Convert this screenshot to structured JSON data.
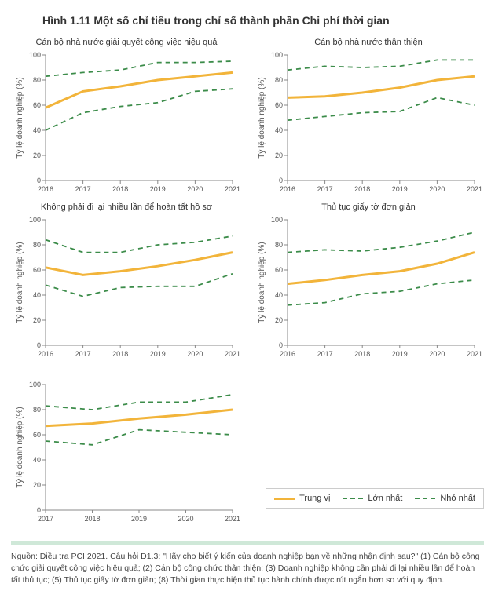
{
  "title": "Hình 1.11 Một số chỉ tiêu trong chỉ số thành phần Chi phí thời gian",
  "colors": {
    "median": "#f2b43a",
    "max": "#3c8c4a",
    "min": "#3c8c4a",
    "axis": "#888888",
    "bg": "#ffffff",
    "sep": "#cfe8d8"
  },
  "y_axis": {
    "label": "Tỷ lệ doanh nghiệp (%)",
    "min": 0,
    "max": 100,
    "ticks": [
      0,
      20,
      40,
      60,
      80,
      100
    ]
  },
  "legend": {
    "median": "Trung vị",
    "max": "Lớn nhất",
    "min": "Nhỏ nhất"
  },
  "panels": [
    {
      "title": "Cán bộ nhà nước giải quyết công việc hiệu quả",
      "years": [
        2016,
        2017,
        2018,
        2019,
        2020,
        2021
      ],
      "median": [
        58,
        71,
        75,
        80,
        83,
        86
      ],
      "max": [
        83,
        86,
        88,
        94,
        94,
        95
      ],
      "min": [
        40,
        54,
        59,
        62,
        71,
        73
      ]
    },
    {
      "title": "Cán bộ nhà nước thân thiện",
      "years": [
        2016,
        2017,
        2018,
        2019,
        2020,
        2021
      ],
      "median": [
        66,
        67,
        70,
        74,
        80,
        83
      ],
      "max": [
        88,
        91,
        90,
        91,
        96,
        96
      ],
      "min": [
        48,
        51,
        54,
        55,
        66,
        60
      ]
    },
    {
      "title": "Không phải đi lại nhiều lần để hoàn tất hồ sơ",
      "years": [
        2016,
        2017,
        2018,
        2019,
        2020,
        2021
      ],
      "median": [
        62,
        56,
        59,
        63,
        68,
        74
      ],
      "max": [
        84,
        74,
        74,
        80,
        82,
        87
      ],
      "min": [
        48,
        39,
        46,
        47,
        47,
        57
      ]
    },
    {
      "title": "Thủ tục giấy tờ đơn giản",
      "years": [
        2016,
        2017,
        2018,
        2019,
        2020,
        2021
      ],
      "median": [
        49,
        52,
        56,
        59,
        65,
        74
      ],
      "max": [
        74,
        76,
        75,
        78,
        83,
        90
      ],
      "min": [
        32,
        34,
        41,
        43,
        49,
        52
      ]
    },
    {
      "title": "",
      "years": [
        2017,
        2018,
        2019,
        2020,
        2021
      ],
      "median": [
        67,
        69,
        73,
        76,
        80
      ],
      "max": [
        83,
        80,
        86,
        86,
        92
      ],
      "min": [
        55,
        52,
        64,
        62,
        60
      ]
    }
  ],
  "footnote": "Nguồn: Điều tra PCI 2021. Câu hỏi D1.3: \"Hãy cho biết ý kiến của doanh nghiệp bạn về những nhận định sau?\" (1) Cán bộ công chức giải quyết công việc hiệu quả; (2) Cán bộ công chức thân thiện; (3) Doanh nghiệp không cần phải đi lại nhiều lần để hoàn tất thủ tục; (5) Thủ tục giấy tờ đơn giản; (8) Thời gian thực hiện thủ tục hành chính được rút ngắn hơn so với quy định."
}
